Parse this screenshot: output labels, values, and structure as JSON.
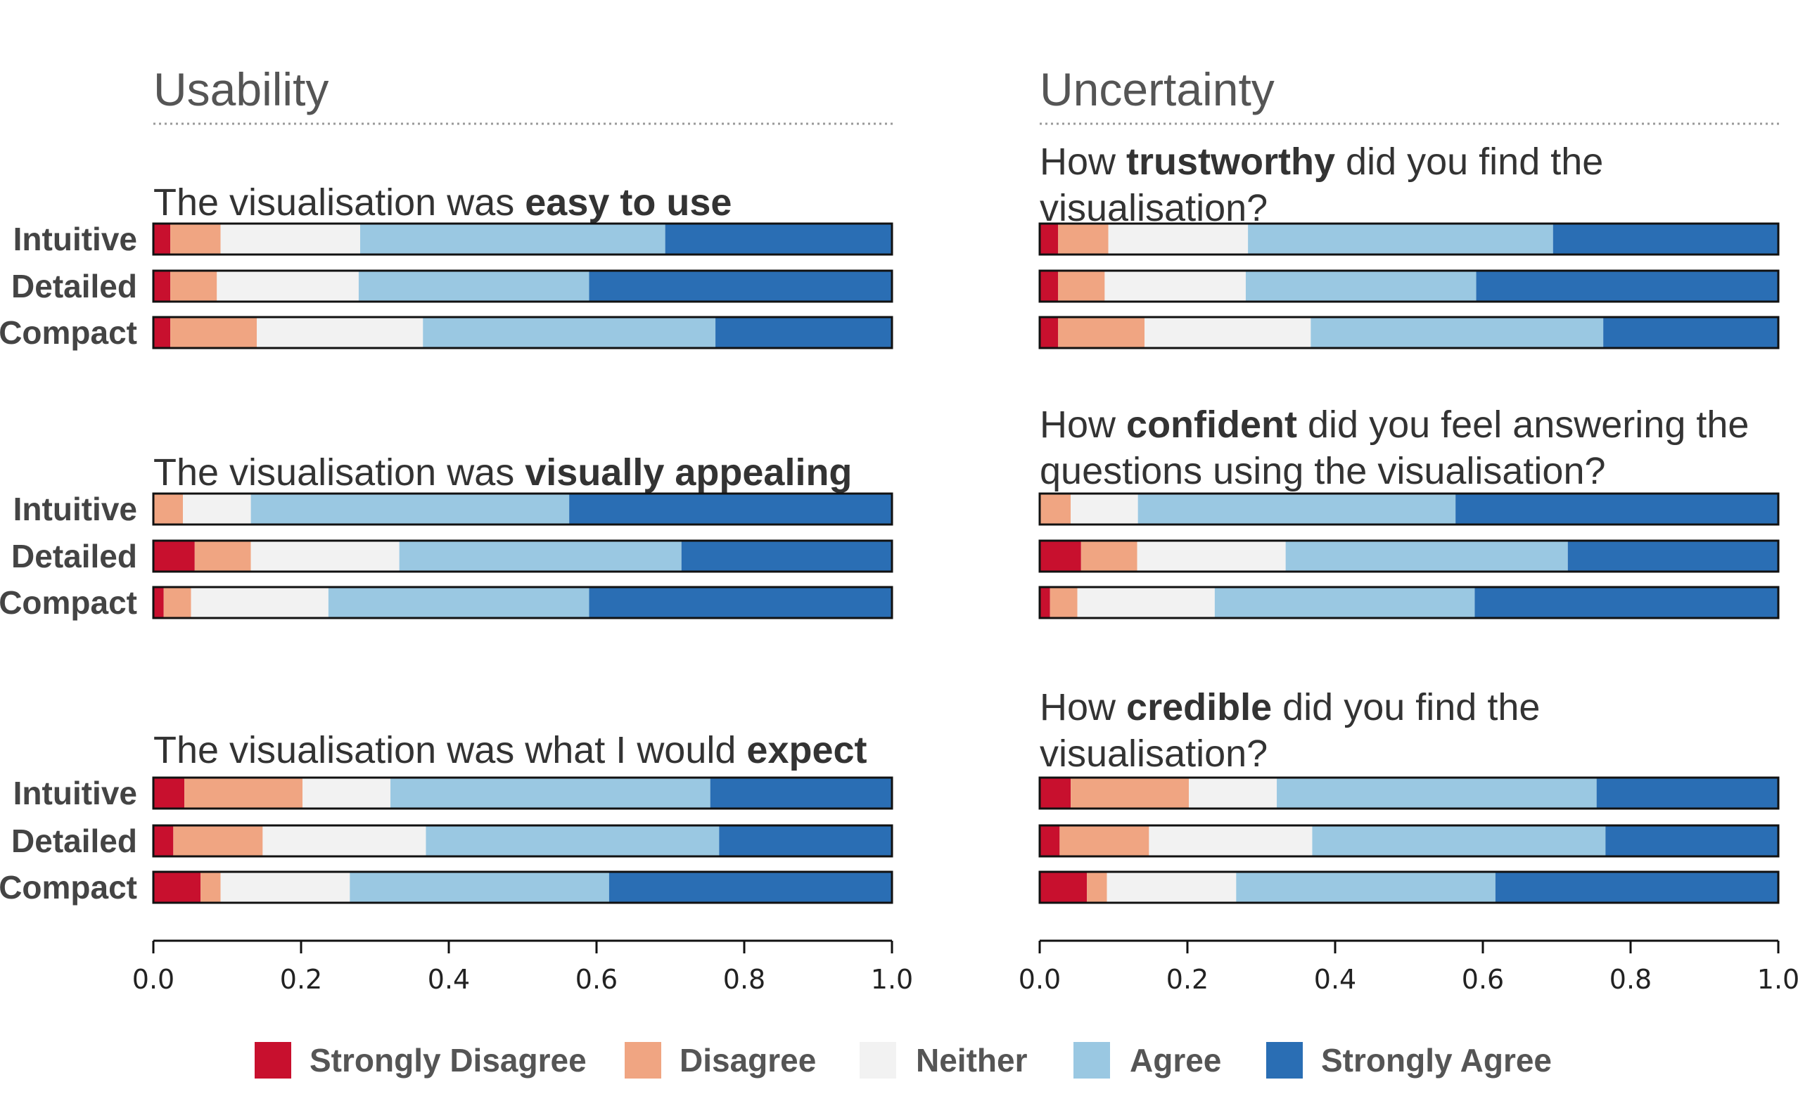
{
  "chart_data": {
    "type": "bar",
    "stacked": true,
    "orientation": "horizontal",
    "xlim": [
      0,
      1
    ],
    "x_ticks": [
      "0.0",
      "0.2",
      "0.4",
      "0.6",
      "0.8",
      "1.0"
    ],
    "categories": [
      "Strongly Disagree",
      "Disagree",
      "Neither",
      "Agree",
      "Strongly Agree"
    ],
    "colors": [
      "#c8102e",
      "#f0a582",
      "#f2f2f2",
      "#9ac8e2",
      "#2a6eb4"
    ],
    "legend_position": "bottom",
    "panels": [
      {
        "title": "Usability",
        "questions": [
          {
            "text_parts": [
              {
                "text": "The visualisation was ",
                "bold": false
              },
              {
                "text": "easy to use",
                "bold": true
              }
            ],
            "rows": [
              {
                "label": "Intuitive",
                "values": [
                  0.023,
                  0.068,
                  0.189,
                  0.413,
                  0.307
                ]
              },
              {
                "label": "Detailed",
                "values": [
                  0.023,
                  0.063,
                  0.192,
                  0.312,
                  0.41
                ]
              },
              {
                "label": "Compact",
                "values": [
                  0.023,
                  0.117,
                  0.225,
                  0.396,
                  0.239
                ]
              }
            ]
          },
          {
            "text_parts": [
              {
                "text": "The visualisation was ",
                "bold": false
              },
              {
                "text": "visually appealing",
                "bold": true
              }
            ],
            "rows": [
              {
                "label": "Intuitive",
                "values": [
                  0.0,
                  0.04,
                  0.092,
                  0.431,
                  0.437
                ]
              },
              {
                "label": "Detailed",
                "values": [
                  0.056,
                  0.076,
                  0.201,
                  0.382,
                  0.285
                ]
              },
              {
                "label": "Compact",
                "values": [
                  0.014,
                  0.037,
                  0.186,
                  0.353,
                  0.41
                ]
              }
            ]
          },
          {
            "text_parts": [
              {
                "text": "The visualisation was what I would ",
                "bold": false
              },
              {
                "text": "expect",
                "bold": true
              }
            ],
            "rows": [
              {
                "label": "Intuitive",
                "values": [
                  0.042,
                  0.16,
                  0.119,
                  0.433,
                  0.246
                ]
              },
              {
                "label": "Detailed",
                "values": [
                  0.027,
                  0.121,
                  0.221,
                  0.397,
                  0.234
                ]
              },
              {
                "label": "Compact",
                "values": [
                  0.064,
                  0.027,
                  0.175,
                  0.351,
                  0.383
                ]
              }
            ]
          }
        ]
      },
      {
        "title": "Uncertainty",
        "questions": [
          {
            "text_parts": [
              {
                "text": "How ",
                "bold": false
              },
              {
                "text": "trustworthy",
                "bold": true
              },
              {
                "text": " did you find the\nvisualisation?",
                "bold": false
              }
            ],
            "rows": [
              {
                "label": "",
                "values": [
                  0.025,
                  0.068,
                  0.189,
                  0.413,
                  0.305
                ]
              },
              {
                "label": "",
                "values": [
                  0.025,
                  0.063,
                  0.191,
                  0.312,
                  0.409
                ]
              },
              {
                "label": "",
                "values": [
                  0.025,
                  0.117,
                  0.225,
                  0.396,
                  0.237
                ]
              }
            ]
          },
          {
            "text_parts": [
              {
                "text": "How ",
                "bold": false
              },
              {
                "text": "confident",
                "bold": true
              },
              {
                "text": " did you feel answering the\nquestions using the visualisation?",
                "bold": false
              }
            ],
            "rows": [
              {
                "label": "",
                "values": [
                  0.0,
                  0.042,
                  0.091,
                  0.43,
                  0.437
                ]
              },
              {
                "label": "",
                "values": [
                  0.056,
                  0.076,
                  0.201,
                  0.382,
                  0.285
                ]
              },
              {
                "label": "",
                "values": [
                  0.014,
                  0.037,
                  0.186,
                  0.352,
                  0.411
                ]
              }
            ]
          },
          {
            "text_parts": [
              {
                "text": "How ",
                "bold": false
              },
              {
                "text": "credible",
                "bold": true
              },
              {
                "text": " did you find the\nvisualisation?",
                "bold": false
              }
            ],
            "rows": [
              {
                "label": "",
                "values": [
                  0.042,
                  0.16,
                  0.119,
                  0.433,
                  0.246
                ]
              },
              {
                "label": "",
                "values": [
                  0.027,
                  0.121,
                  0.221,
                  0.397,
                  0.234
                ]
              },
              {
                "label": "",
                "values": [
                  0.064,
                  0.027,
                  0.175,
                  0.351,
                  0.383
                ]
              }
            ]
          }
        ]
      }
    ]
  }
}
